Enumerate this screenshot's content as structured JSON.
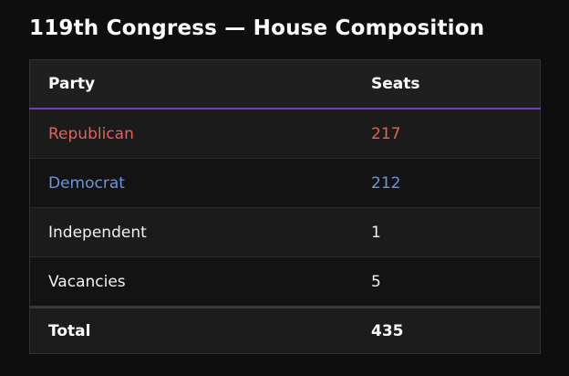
{
  "title": "119th Congress — House Composition",
  "table": {
    "header": [
      "Party",
      "Seats"
    ],
    "rows": [
      {
        "party": "Republican",
        "seats": 217,
        "color": "#e0625c"
      },
      {
        "party": "Democrat",
        "seats": 212,
        "color": "#6a94dc"
      },
      {
        "party": "Independent",
        "seats": 1
      },
      {
        "party": "Vacancies",
        "seats": 5
      }
    ],
    "total": [
      "Total",
      435
    ]
  }
}
